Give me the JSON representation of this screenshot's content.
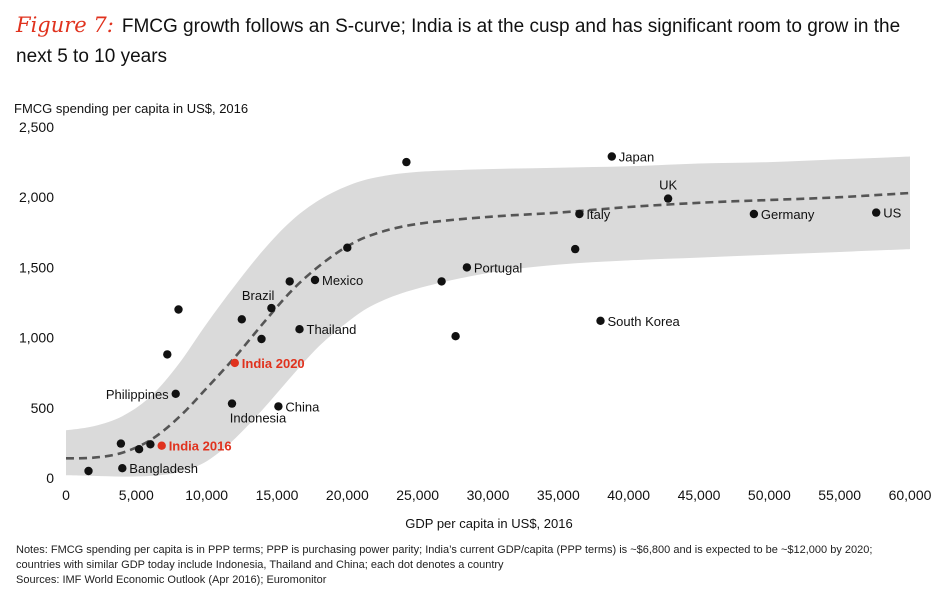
{
  "figure": {
    "label": "Figure 7:",
    "title": "FMCG growth follows an S-curve; India is at the cusp and has significant room to grow in the next 5 to 10 years"
  },
  "colors": {
    "dot": "#111111",
    "highlight": "#e0321e",
    "band": "#dadada",
    "curve": "#555555"
  },
  "chart_data": {
    "type": "scatter",
    "title": "FMCG growth follows an S-curve; India is at the cusp and has significant room to grow in the next 5 to 10 years",
    "ylabel": "FMCG spending per capita in US$, 2016",
    "xlabel": "GDP per capita in US$, 2016",
    "xlim": [
      0,
      60000
    ],
    "ylim": [
      0,
      2500
    ],
    "xticks": [
      0,
      5000,
      10000,
      15000,
      20000,
      25000,
      30000,
      35000,
      40000,
      45000,
      50000,
      55000,
      60000
    ],
    "yticks": [
      0,
      500,
      1000,
      1500,
      2000,
      2500
    ],
    "xtick_labels": [
      "0",
      "5,000",
      "10,000",
      "15,000",
      "20,000",
      "25,000",
      "30,000",
      "35,000",
      "40,000",
      "45,000",
      "50,000",
      "55,000",
      "60,000"
    ],
    "ytick_labels": [
      "0",
      "500",
      "1,000",
      "1,500",
      "2,000",
      "2,500"
    ],
    "points": [
      {
        "x": 1600,
        "y": 50,
        "label": ""
      },
      {
        "x": 3900,
        "y": 245,
        "label": ""
      },
      {
        "x": 4000,
        "y": 70,
        "label": "Bangladesh",
        "pos": "right"
      },
      {
        "x": 5200,
        "y": 205,
        "label": ""
      },
      {
        "x": 6000,
        "y": 240,
        "label": ""
      },
      {
        "x": 6800,
        "y": 230,
        "label": "India 2016",
        "pos": "right",
        "highlight": true
      },
      {
        "x": 7200,
        "y": 880,
        "label": ""
      },
      {
        "x": 7800,
        "y": 600,
        "label": "Philippines",
        "pos": "left"
      },
      {
        "x": 8000,
        "y": 1200,
        "label": ""
      },
      {
        "x": 11800,
        "y": 530,
        "label": "Indonesia",
        "pos": "below"
      },
      {
        "x": 12000,
        "y": 820,
        "label": "India 2020",
        "pos": "right",
        "highlight": true
      },
      {
        "x": 12500,
        "y": 1130,
        "label": ""
      },
      {
        "x": 13900,
        "y": 990,
        "label": ""
      },
      {
        "x": 14600,
        "y": 1210,
        "label": "Brazil",
        "pos": "above-left"
      },
      {
        "x": 15100,
        "y": 510,
        "label": "China",
        "pos": "right"
      },
      {
        "x": 15900,
        "y": 1400,
        "label": ""
      },
      {
        "x": 16600,
        "y": 1060,
        "label": "Thailand",
        "pos": "right"
      },
      {
        "x": 17700,
        "y": 1410,
        "label": "Mexico",
        "pos": "right"
      },
      {
        "x": 20000,
        "y": 1640,
        "label": ""
      },
      {
        "x": 24200,
        "y": 2250,
        "label": ""
      },
      {
        "x": 26700,
        "y": 1400,
        "label": ""
      },
      {
        "x": 27700,
        "y": 1010,
        "label": ""
      },
      {
        "x": 28500,
        "y": 1500,
        "label": "Portugal",
        "pos": "right"
      },
      {
        "x": 36200,
        "y": 1630,
        "label": ""
      },
      {
        "x": 36500,
        "y": 1880,
        "label": "Italy",
        "pos": "right"
      },
      {
        "x": 38000,
        "y": 1120,
        "label": "South Korea",
        "pos": "right"
      },
      {
        "x": 38800,
        "y": 2290,
        "label": "Japan",
        "pos": "right"
      },
      {
        "x": 42800,
        "y": 1990,
        "label": "UK",
        "pos": "above"
      },
      {
        "x": 48900,
        "y": 1880,
        "label": "Germany",
        "pos": "right"
      },
      {
        "x": 57600,
        "y": 1890,
        "label": "US",
        "pos": "right"
      }
    ],
    "trend_curve": {
      "style": "dashed",
      "points": [
        [
          0,
          140
        ],
        [
          2000,
          145
        ],
        [
          4000,
          180
        ],
        [
          6000,
          270
        ],
        [
          8000,
          430
        ],
        [
          10000,
          640
        ],
        [
          12000,
          860
        ],
        [
          14000,
          1100
        ],
        [
          16000,
          1330
        ],
        [
          18000,
          1510
        ],
        [
          20000,
          1650
        ],
        [
          22000,
          1740
        ],
        [
          25000,
          1810
        ],
        [
          30000,
          1860
        ],
        [
          35000,
          1890
        ],
        [
          40000,
          1930
        ],
        [
          45000,
          1960
        ],
        [
          50000,
          1980
        ],
        [
          55000,
          2000
        ],
        [
          60000,
          2030
        ]
      ]
    },
    "band": {
      "upper": [
        [
          0,
          340
        ],
        [
          2000,
          370
        ],
        [
          4000,
          440
        ],
        [
          6000,
          580
        ],
        [
          8000,
          810
        ],
        [
          10000,
          1100
        ],
        [
          12000,
          1370
        ],
        [
          14000,
          1620
        ],
        [
          16000,
          1830
        ],
        [
          18000,
          1980
        ],
        [
          20000,
          2080
        ],
        [
          22000,
          2140
        ],
        [
          25000,
          2180
        ],
        [
          30000,
          2200
        ],
        [
          35000,
          2210
        ],
        [
          40000,
          2220
        ],
        [
          45000,
          2240
        ],
        [
          50000,
          2250
        ],
        [
          55000,
          2270
        ],
        [
          60000,
          2290
        ]
      ],
      "lower": [
        [
          0,
          20
        ],
        [
          2000,
          15
        ],
        [
          4000,
          10
        ],
        [
          6000,
          15
        ],
        [
          8000,
          40
        ],
        [
          10000,
          120
        ],
        [
          12000,
          280
        ],
        [
          14000,
          490
        ],
        [
          16000,
          720
        ],
        [
          18000,
          940
        ],
        [
          20000,
          1110
        ],
        [
          22000,
          1240
        ],
        [
          25000,
          1350
        ],
        [
          30000,
          1460
        ],
        [
          35000,
          1520
        ],
        [
          40000,
          1550
        ],
        [
          45000,
          1570
        ],
        [
          50000,
          1590
        ],
        [
          55000,
          1610
        ],
        [
          60000,
          1630
        ]
      ]
    }
  },
  "notes": {
    "line1": "Notes: FMCG spending per capita is in PPP terms; PPP is purchasing power parity; India’s current GDP/capita (PPP terms) is ~$6,800 and is expected to be ~$12,000 by 2020;",
    "line2": "countries with similar GDP today include Indonesia, Thailand and China; each dot denotes a country",
    "sources": "Sources: IMF World Economic Outlook (Apr 2016); Euromonitor"
  }
}
